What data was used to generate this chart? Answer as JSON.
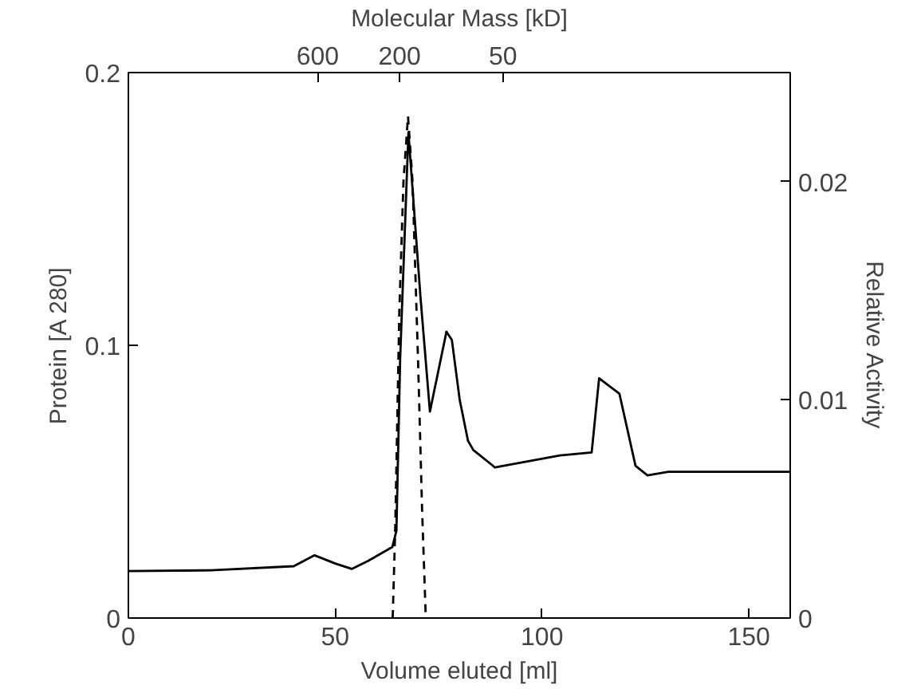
{
  "chart_data": {
    "type": "line",
    "xlabel": "Volume eluted [ml]",
    "ylabel": "Protein [A 280]",
    "y2label": "Relative Activity",
    "x2label": "Molecular Mass [kD]",
    "xlim": [
      0,
      160
    ],
    "xticks": [
      0,
      50,
      100,
      150
    ],
    "ylim": [
      0,
      0.2
    ],
    "yticks": [
      0,
      0.1,
      0.2
    ],
    "y2lim": [
      0,
      0.025
    ],
    "y2ticks": [
      0,
      0.01,
      0.02
    ],
    "x2lim": [
      7600,
      1.06
    ],
    "x2ticks": [
      600,
      200,
      50
    ],
    "log": "x2",
    "grid": false,
    "marker": "none",
    "series": [
      {
        "color": "#000000",
        "line_style": "solid",
        "x": [
          0,
          20,
          40,
          45,
          50,
          54,
          58,
          63.8,
          64.8,
          65.7,
          67.7,
          70.6,
          72.9,
          76.9,
          78.2,
          80.1,
          82.1,
          83.4,
          88,
          88.6,
          104.3,
          112,
          113.8,
          118.7,
          122.6,
          125.5,
          130.5,
          160
        ],
        "values": [
          0.0172,
          0.0175,
          0.019,
          0.023,
          0.02,
          0.018,
          0.021,
          0.026,
          0.032,
          0.095,
          0.178,
          0.118,
          0.0757,
          0.105,
          0.102,
          0.08,
          0.065,
          0.0616,
          0.056,
          0.0552,
          0.0596,
          0.0607,
          0.0879,
          0.0823,
          0.0558,
          0.0523,
          0.0536,
          0.0536
        ]
      },
      {
        "color": "#000000",
        "line_style": "dashed",
        "axis": "y2",
        "x": [
          63.9,
          64.5,
          65.5,
          66.5,
          67.6,
          68.7,
          70,
          71,
          71.9
        ],
        "values": [
          0,
          0.004,
          0.014,
          0.02,
          0.023,
          0.02,
          0.012,
          0.005,
          0
        ]
      }
    ]
  }
}
